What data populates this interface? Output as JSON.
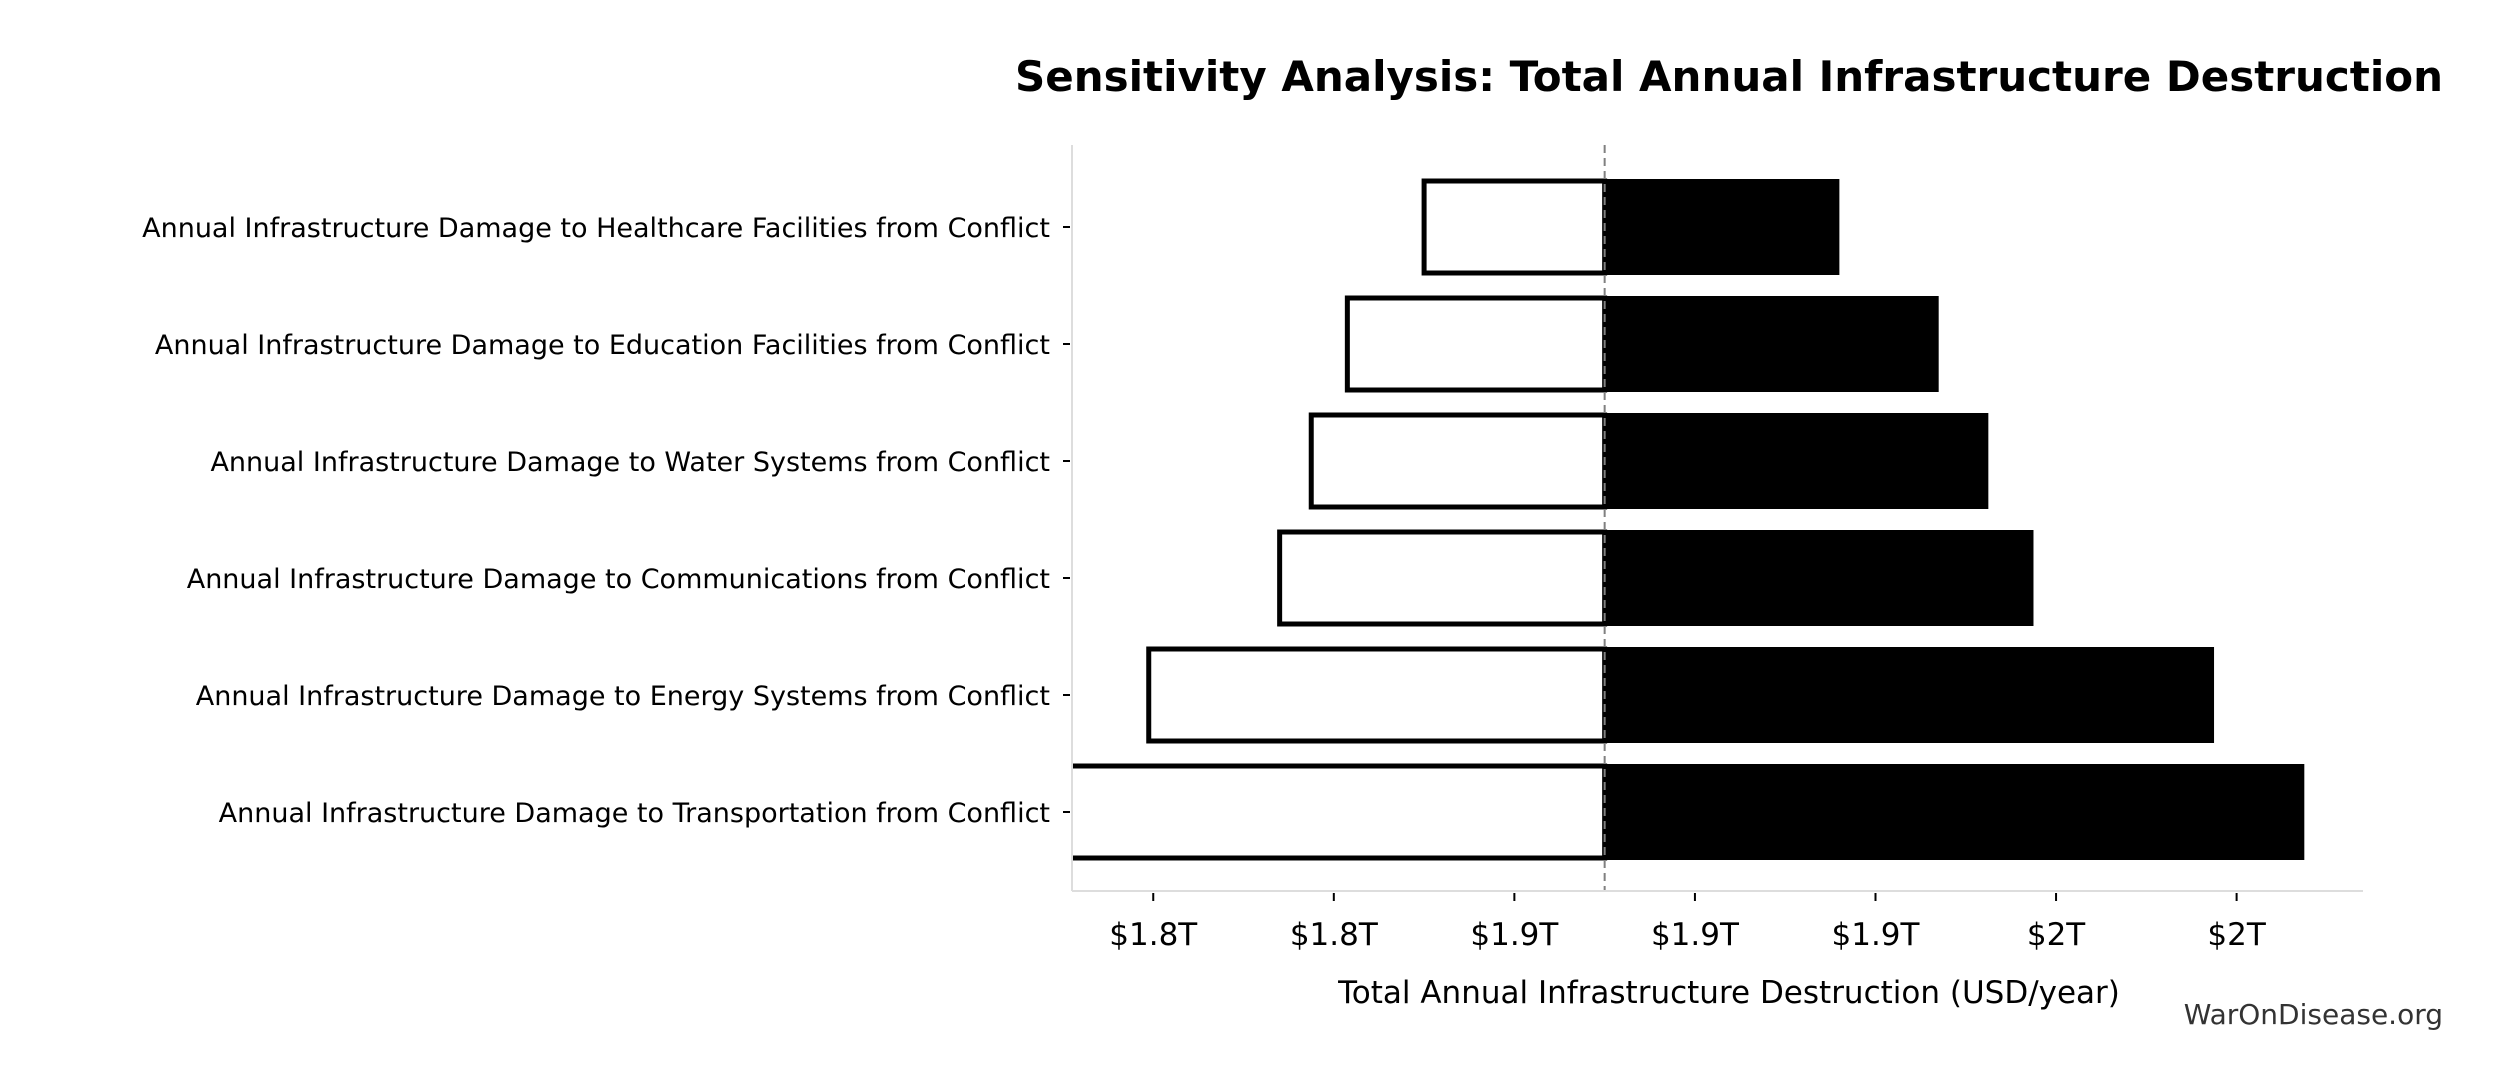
{
  "chart_data": {
    "type": "bar",
    "orientation": "horizontal",
    "subtype": "tornado",
    "title": "Sensitivity Analysis: Total Annual Infrastructure Destruction",
    "xlabel": "Total Annual Infrastructure Destruction (USD/year)",
    "ylabel": "",
    "unit": "USD trillions/year",
    "baseline": 1.88,
    "xlim": [
      1.762,
      2.048
    ],
    "xticks": [
      1.78,
      1.82,
      1.86,
      1.9,
      1.94,
      1.98,
      2.02
    ],
    "xtick_labels": [
      "$1.8T",
      "$1.8T",
      "$1.9T",
      "$1.9T",
      "$1.9T",
      "$2T",
      "$2T"
    ],
    "grid": false,
    "categories": [
      "Annual Infrastructure Damage to Healthcare Facilities from Conflict",
      "Annual Infrastructure Damage to Education Facilities from Conflict",
      "Annual Infrastructure Damage to Water Systems from Conflict",
      "Annual Infrastructure Damage to Communications from Conflict",
      "Annual Infrastructure Damage to Energy Systems from Conflict",
      "Annual Infrastructure Damage to Transportation from Conflict"
    ],
    "low": [
      1.84,
      1.823,
      1.815,
      1.808,
      1.779,
      1.755
    ],
    "high": [
      1.932,
      1.954,
      1.965,
      1.975,
      2.015,
      2.035
    ],
    "colors": {
      "low_fill": "#ffffff",
      "low_edge": "#000000",
      "high_fill": "#000000",
      "baseline": "#808080",
      "spine": "#dddddd"
    }
  },
  "watermark": "WarOnDisease.org"
}
